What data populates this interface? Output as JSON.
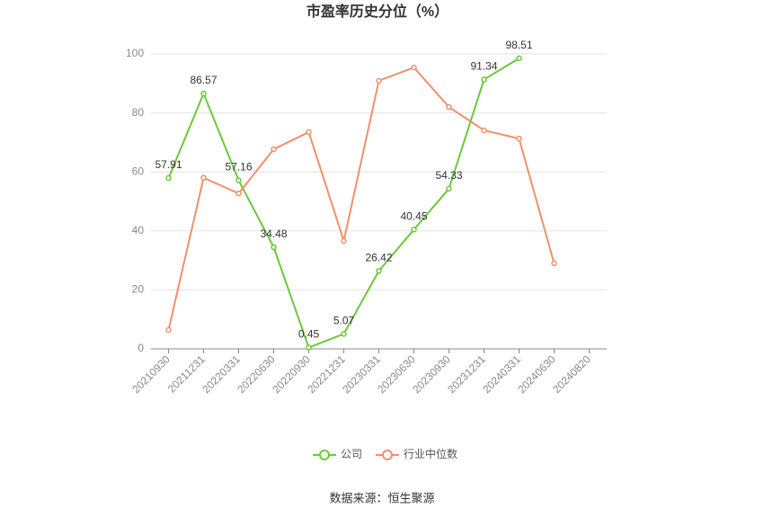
{
  "chart_data": {
    "type": "line",
    "title": "市盈率历史分位（%）",
    "categories": [
      "20210930",
      "20211231",
      "20220331",
      "20220630",
      "20220930",
      "20221231",
      "20230331",
      "20230630",
      "20230930",
      "20231231",
      "20240331",
      "20240630",
      "20240820"
    ],
    "series": [
      {
        "name": "公司",
        "color": "#6cc83a",
        "values": [
          57.91,
          86.57,
          57.16,
          34.48,
          0.45,
          5.07,
          26.42,
          40.45,
          54.33,
          91.34,
          98.51,
          null,
          null
        ],
        "data_labels": true
      },
      {
        "name": "行业中位数",
        "color": "#f0906a",
        "values": [
          6.4,
          58,
          52.7,
          67.7,
          73.5,
          36.6,
          90.9,
          95.4,
          82,
          74.1,
          71.3,
          29,
          null
        ]
      }
    ],
    "ylim": [
      0,
      100
    ],
    "yticks": [
      0,
      20,
      40,
      60,
      80,
      100
    ],
    "grid": true,
    "legend": "bottom",
    "source": "数据来源：恒生聚源"
  }
}
